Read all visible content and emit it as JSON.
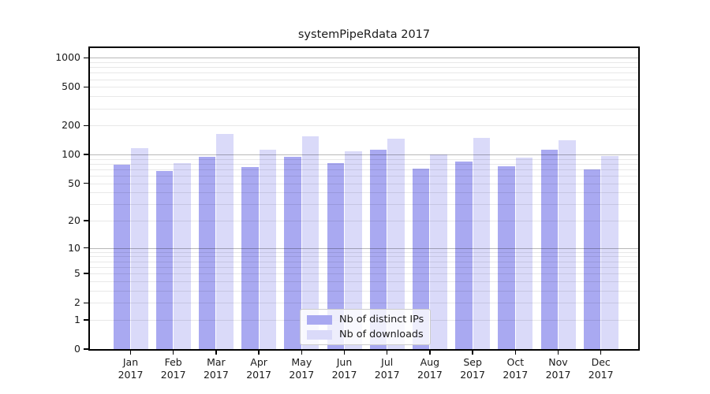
{
  "chart_data": {
    "type": "bar",
    "title": "systemPipeRdata 2017",
    "scale": "log1p",
    "grid": "both",
    "xlabel": "",
    "ylabel": "",
    "ylim": [
      0,
      1000
    ],
    "legend_position": "lower center",
    "categories": [
      "Jan 2017",
      "Feb 2017",
      "Mar 2017",
      "Apr 2017",
      "May 2017",
      "Jun 2017",
      "Jul 2017",
      "Aug 2017",
      "Sep 2017",
      "Oct 2017",
      "Nov 2017",
      "Dec 2017"
    ],
    "series": [
      {
        "name": "Nb of distinct IPs",
        "color": "#a9a9f1",
        "values": [
          78,
          67,
          95,
          74,
          95,
          81,
          112,
          71,
          84,
          76,
          112,
          70
        ]
      },
      {
        "name": "Nb of downloads",
        "color": "#dadaf9",
        "values": [
          117,
          81,
          162,
          113,
          154,
          107,
          146,
          100,
          149,
          92,
          140,
          97
        ]
      }
    ],
    "y_ticks": [
      1000,
      500,
      200,
      100,
      50,
      20,
      10,
      5,
      2,
      1,
      0
    ],
    "grid_major_values": [
      10,
      100,
      1000
    ],
    "grid_major_color": "rgba(0,0,0,0.28)",
    "grid_minor_color": "rgba(0,0,0,0.09)",
    "axis_color": "#000000",
    "background_color": "#ffffff"
  }
}
